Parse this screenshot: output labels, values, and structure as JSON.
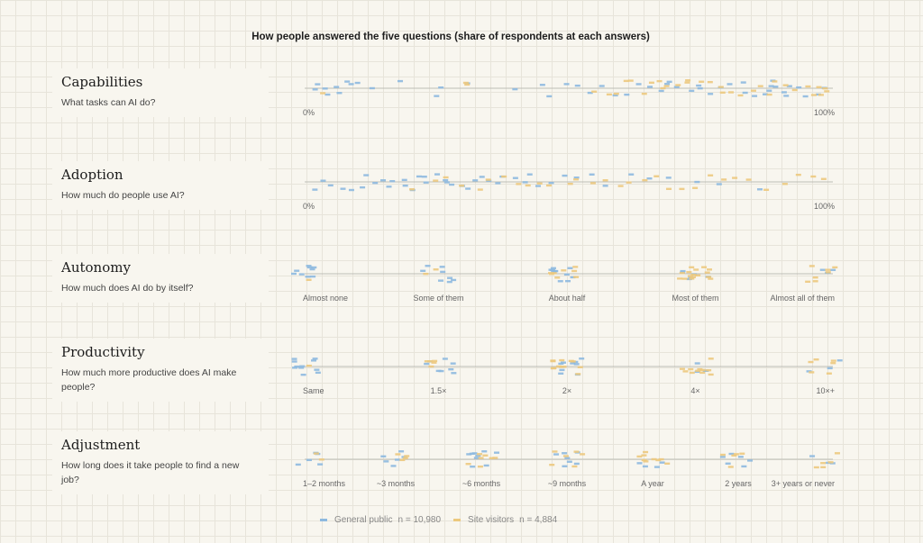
{
  "chart_data": {
    "type": "scatter",
    "title": "How people answered the five questions (share of respondents at each answers)",
    "series": [
      {
        "name": "General public",
        "n_label": "n = 10,980",
        "color": "#8db9df"
      },
      {
        "name": "Site visitors",
        "n_label": "n = 4,884",
        "color": "#ecc97e"
      }
    ],
    "rows": [
      {
        "name": "Capabilities",
        "question": "What tasks can AI do?",
        "kind": "continuous",
        "ticks": [
          "0%",
          "100%"
        ],
        "general_public": [
          0.01,
          0.02,
          0.03,
          0.04,
          0.05,
          0.06,
          0.07,
          0.08,
          0.09,
          0.12,
          0.18,
          0.24,
          0.26,
          0.3,
          0.4,
          0.45,
          0.47,
          0.5,
          0.52,
          0.55,
          0.57,
          0.6,
          0.62,
          0.64,
          0.66,
          0.68,
          0.7,
          0.7,
          0.72,
          0.74,
          0.75,
          0.76,
          0.78,
          0.8,
          0.82,
          0.84,
          0.85,
          0.86,
          0.88,
          0.89,
          0.9,
          0.9,
          0.91,
          0.92,
          0.93,
          0.94,
          0.95,
          0.97,
          0.99,
          1.0
        ],
        "site_visitors": [
          0.03,
          0.3,
          0.31,
          0.55,
          0.58,
          0.6,
          0.62,
          0.63,
          0.65,
          0.66,
          0.68,
          0.69,
          0.7,
          0.72,
          0.73,
          0.74,
          0.76,
          0.78,
          0.8,
          0.81,
          0.82,
          0.84,
          0.86,
          0.88,
          0.9,
          0.91,
          0.93,
          0.95,
          0.97,
          0.98,
          0.99,
          1.0,
          1.0,
          1.0
        ]
      },
      {
        "name": "Adoption",
        "question": "How much do people use AI?",
        "kind": "continuous",
        "ticks": [
          "0%",
          "100%"
        ],
        "general_public": [
          0.01,
          0.02,
          0.04,
          0.06,
          0.08,
          0.1,
          0.11,
          0.12,
          0.14,
          0.15,
          0.16,
          0.18,
          0.19,
          0.2,
          0.21,
          0.22,
          0.23,
          0.25,
          0.26,
          0.27,
          0.28,
          0.3,
          0.31,
          0.32,
          0.33,
          0.35,
          0.36,
          0.38,
          0.4,
          0.42,
          0.43,
          0.45,
          0.47,
          0.49,
          0.52,
          0.55,
          0.58,
          0.62,
          0.66,
          0.7,
          0.75,
          0.8,
          0.87
        ],
        "site_visitors": [
          0.2,
          0.24,
          0.27,
          0.3,
          0.33,
          0.35,
          0.38,
          0.4,
          0.42,
          0.45,
          0.47,
          0.5,
          0.52,
          0.55,
          0.58,
          0.6,
          0.62,
          0.65,
          0.68,
          0.7,
          0.72,
          0.75,
          0.78,
          0.8,
          0.83,
          0.86,
          0.89,
          0.92,
          0.95,
          0.98,
          1.0
        ]
      },
      {
        "name": "Autonomy",
        "question": "How much does AI do by itself?",
        "kind": "categorical",
        "ticks": [
          "Almost none",
          "Some of them",
          "About half",
          "Most of them",
          "Almost all of them"
        ],
        "general_public": [
          9,
          8,
          11,
          6,
          3
        ],
        "site_visitors": [
          1,
          2,
          8,
          16,
          7
        ]
      },
      {
        "name": "Productivity",
        "question": "How much more productive does AI make people?",
        "kind": "categorical",
        "ticks": [
          "Same",
          "1.5×",
          "2×",
          "4×",
          "10×+"
        ],
        "general_public": [
          11,
          8,
          9,
          4,
          3
        ],
        "site_visitors": [
          1,
          5,
          12,
          11,
          6
        ]
      },
      {
        "name": "Adjustment",
        "question": "How long does it take people to find a new job?",
        "kind": "categorical",
        "ticks": [
          "1–2 months",
          "~3 months",
          "~6 months",
          "~9 months",
          "A year",
          "2 years",
          "3+ years or never"
        ],
        "general_public": [
          5,
          6,
          9,
          7,
          4,
          6,
          3
        ],
        "site_visitors": [
          2,
          4,
          7,
          6,
          9,
          5,
          5
        ]
      }
    ]
  }
}
